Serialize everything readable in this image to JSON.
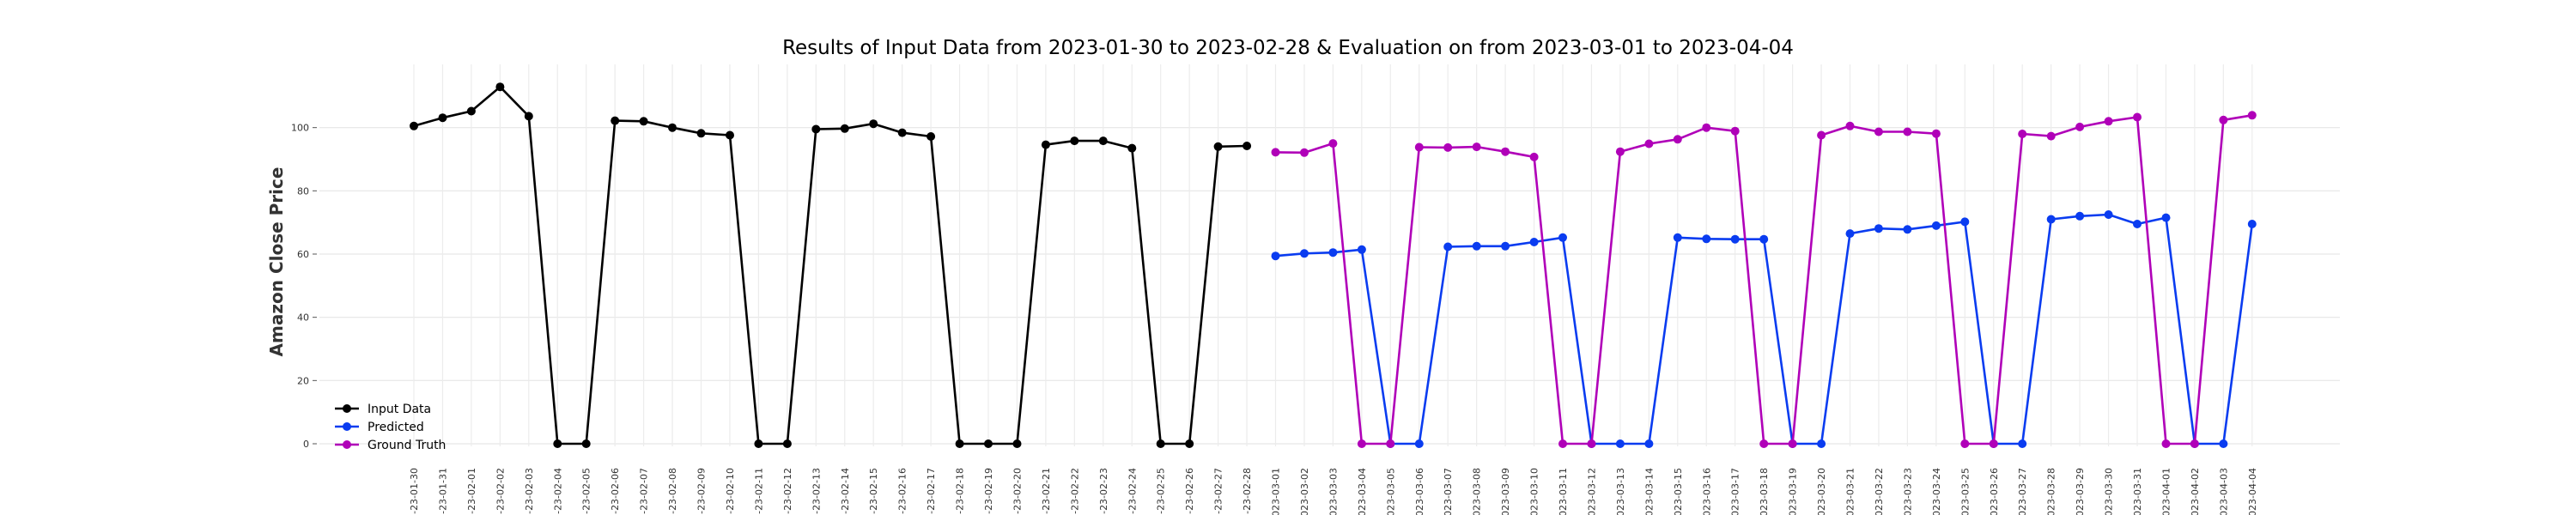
{
  "chart_data": {
    "type": "line",
    "title": "Results of Input Data from 2023-01-30 to 2023-02-28 & Evaluation on from 2023-03-01 to 2023-04-04",
    "xlabel": "",
    "ylabel": "Amazon Close Price",
    "ylim": [
      0,
      120
    ],
    "yticks": [
      0,
      20,
      40,
      60,
      80,
      100
    ],
    "grid": true,
    "legend_position": "lower-left",
    "categories": [
      "2023-01-30",
      "2023-01-31",
      "2023-02-01",
      "2023-02-02",
      "2023-02-03",
      "2023-02-04",
      "2023-02-05",
      "2023-02-06",
      "2023-02-07",
      "2023-02-08",
      "2023-02-09",
      "2023-02-10",
      "2023-02-11",
      "2023-02-12",
      "2023-02-13",
      "2023-02-14",
      "2023-02-15",
      "2023-02-16",
      "2023-02-17",
      "2023-02-18",
      "2023-02-19",
      "2023-02-20",
      "2023-02-21",
      "2023-02-22",
      "2023-02-23",
      "2023-02-24",
      "2023-02-25",
      "2023-02-26",
      "2023-02-27",
      "2023-02-28",
      "2023-03-01",
      "2023-03-02",
      "2023-03-03",
      "2023-03-04",
      "2023-03-05",
      "2023-03-06",
      "2023-03-07",
      "2023-03-08",
      "2023-03-09",
      "2023-03-10",
      "2023-03-11",
      "2023-03-12",
      "2023-03-13",
      "2023-03-14",
      "2023-03-15",
      "2023-03-16",
      "2023-03-17",
      "2023-03-18",
      "2023-03-19",
      "2023-03-20",
      "2023-03-21",
      "2023-03-22",
      "2023-03-23",
      "2023-03-24",
      "2023-03-25",
      "2023-03-26",
      "2023-03-27",
      "2023-03-28",
      "2023-03-29",
      "2023-03-30",
      "2023-03-31",
      "2023-04-01",
      "2023-04-02",
      "2023-04-03",
      "2023-04-04"
    ],
    "tick_labels": [
      "-23-01-30",
      "-23-01-31",
      "-23-02-01",
      "-23-02-02",
      "-23-02-03",
      "-23-02-04",
      "-23-02-05",
      "-23-02-06",
      "-23-02-07",
      "-23-02-08",
      "-23-02-09",
      "-23-02-10",
      "-23-02-11",
      "-23-02-12",
      "-23-02-13",
      "-23-02-14",
      "-23-02-15",
      "-23-02-16",
      "-23-02-17",
      "-23-02-18",
      "-23-02-19",
      "-23-02-20",
      "-23-02-21",
      "-23-02-22",
      "-23-02-23",
      "-23-02-24",
      "-23-02-25",
      "-23-02-26",
      "-23-02-27",
      "-23-02-28",
      "2023-03-01",
      "2023-03-02",
      "2023-03-03",
      "2023-03-04",
      "2023-03-05",
      "2023-03-06",
      "2023-03-07",
      "2023-03-08",
      "2023-03-09",
      "2023-03-10",
      "2023-03-11",
      "2023-03-12",
      "2023-03-13",
      "2023-03-14",
      "2023-03-15",
      "2023-03-16",
      "2023-03-17",
      "2023-03-18",
      "2023-03-19",
      "2023-03-20",
      "2023-03-21",
      "2023-03-22",
      "2023-03-23",
      "2023-03-24",
      "2023-03-25",
      "2023-03-26",
      "2023-03-27",
      "2023-03-28",
      "2023-03-29",
      "2023-03-30",
      "2023-03-31",
      "2023-04-01",
      "2023-04-02",
      "2023-04-03",
      "2023-04-04"
    ],
    "series": [
      {
        "name": "Input Data",
        "color": "#000000",
        "x": [
          "2023-01-30",
          "2023-01-31",
          "2023-02-01",
          "2023-02-02",
          "2023-02-03",
          "2023-02-04",
          "2023-02-05",
          "2023-02-06",
          "2023-02-07",
          "2023-02-08",
          "2023-02-09",
          "2023-02-10",
          "2023-02-11",
          "2023-02-12",
          "2023-02-13",
          "2023-02-14",
          "2023-02-15",
          "2023-02-16",
          "2023-02-17",
          "2023-02-18",
          "2023-02-19",
          "2023-02-20",
          "2023-02-21",
          "2023-02-22",
          "2023-02-23",
          "2023-02-24",
          "2023-02-25",
          "2023-02-26",
          "2023-02-27",
          "2023-02-28"
        ],
        "values": [
          100.5,
          103.1,
          105.2,
          112.9,
          103.6,
          0,
          0,
          102.2,
          102.0,
          100.0,
          98.2,
          97.6,
          0,
          0,
          99.5,
          99.7,
          101.2,
          98.4,
          97.2,
          0,
          0,
          0,
          94.6,
          95.8,
          95.8,
          93.5,
          0,
          0,
          94.0,
          94.2
        ]
      },
      {
        "name": "Predicted",
        "color": "#0a3cf0",
        "x": [
          "2023-03-01",
          "2023-03-02",
          "2023-03-03",
          "2023-03-04",
          "2023-03-05",
          "2023-03-06",
          "2023-03-07",
          "2023-03-08",
          "2023-03-09",
          "2023-03-10",
          "2023-03-11",
          "2023-03-12",
          "2023-03-13",
          "2023-03-14",
          "2023-03-15",
          "2023-03-16",
          "2023-03-17",
          "2023-03-18",
          "2023-03-19",
          "2023-03-20",
          "2023-03-21",
          "2023-03-22",
          "2023-03-23",
          "2023-03-24",
          "2023-03-25",
          "2023-03-26",
          "2023-03-27",
          "2023-03-28",
          "2023-03-29",
          "2023-03-30",
          "2023-03-31",
          "2023-04-01",
          "2023-04-02",
          "2023-04-03",
          "2023-04-04"
        ],
        "values": [
          59.4,
          60.2,
          60.5,
          61.4,
          0,
          0,
          62.3,
          62.5,
          62.5,
          63.8,
          65.2,
          0,
          0,
          0,
          65.2,
          64.8,
          64.7,
          64.7,
          0,
          0,
          66.5,
          68.1,
          67.8,
          69.0,
          70.2,
          0,
          0,
          71.0,
          72.0,
          72.5,
          69.5,
          71.5,
          0,
          0,
          69.5
        ]
      },
      {
        "name": "Ground Truth",
        "color": "#b000b8",
        "x": [
          "2023-03-01",
          "2023-03-02",
          "2023-03-03",
          "2023-03-04",
          "2023-03-05",
          "2023-03-06",
          "2023-03-07",
          "2023-03-08",
          "2023-03-09",
          "2023-03-10",
          "2023-03-11",
          "2023-03-12",
          "2023-03-13",
          "2023-03-14",
          "2023-03-15",
          "2023-03-16",
          "2023-03-17",
          "2023-03-18",
          "2023-03-19",
          "2023-03-20",
          "2023-03-21",
          "2023-03-22",
          "2023-03-23",
          "2023-03-24",
          "2023-03-25",
          "2023-03-26",
          "2023-03-27",
          "2023-03-28",
          "2023-03-29",
          "2023-03-30",
          "2023-03-31",
          "2023-04-01",
          "2023-04-02",
          "2023-04-03",
          "2023-04-04"
        ],
        "values": [
          92.2,
          92.1,
          95.0,
          0,
          0,
          93.8,
          93.7,
          93.9,
          92.4,
          90.7,
          0,
          0,
          92.4,
          94.9,
          96.3,
          100.0,
          98.9,
          0,
          0,
          97.6,
          100.5,
          98.7,
          98.7,
          98.1,
          0,
          0,
          98.0,
          97.3,
          100.2,
          102.0,
          103.3,
          0,
          0,
          102.4,
          103.9
        ]
      }
    ]
  }
}
